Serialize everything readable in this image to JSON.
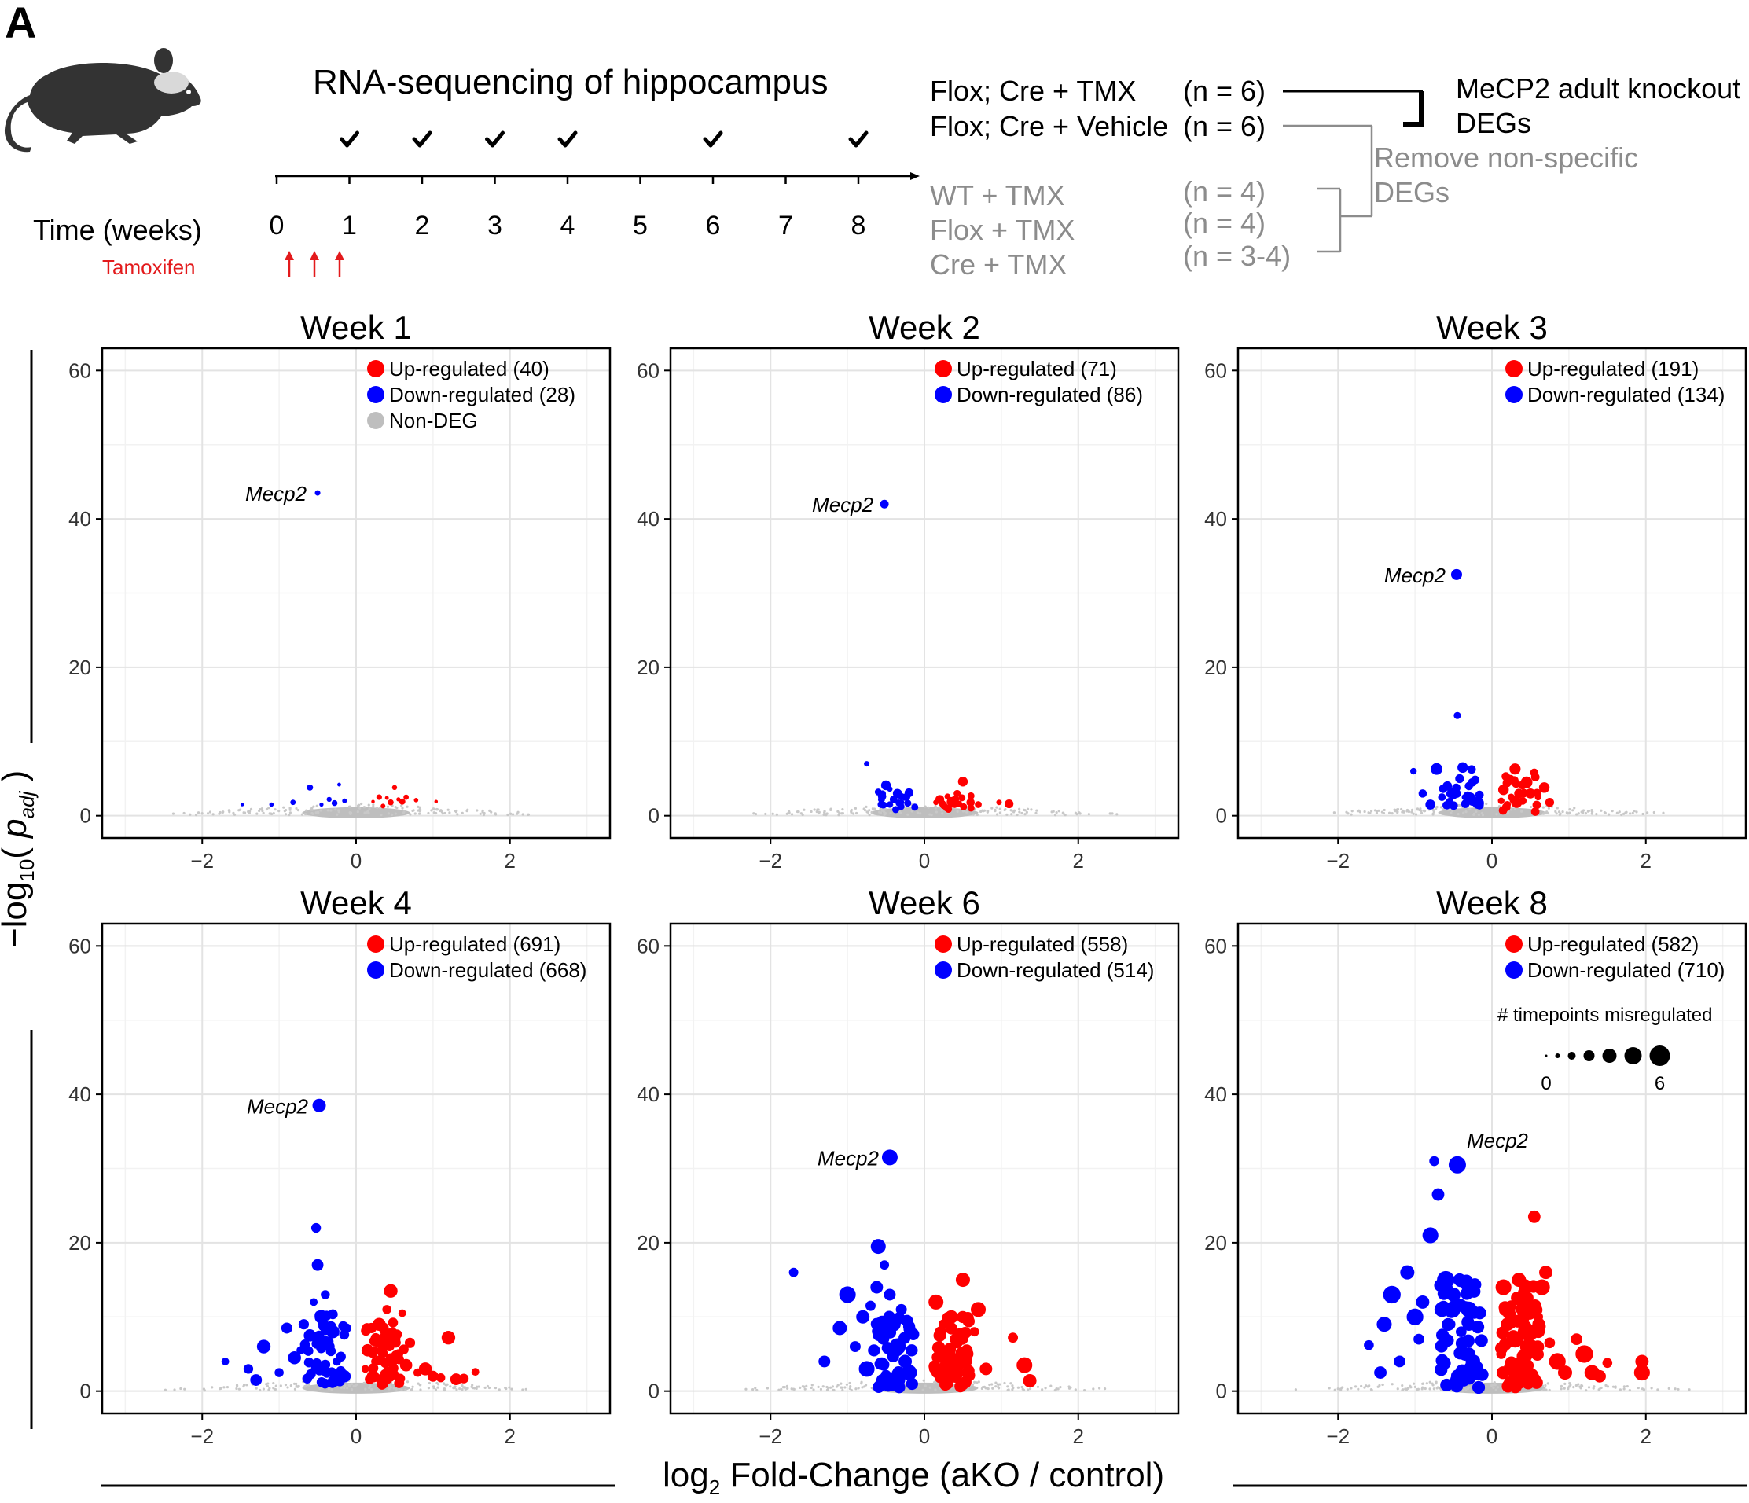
{
  "panel_label": "A",
  "schematic": {
    "title": "RNA-sequencing of hippocampus",
    "time_label": "Time (weeks)",
    "tamoxifen_label": "Tamoxifen",
    "ticks": [
      "0",
      "1",
      "2",
      "3",
      "4",
      "5",
      "6",
      "7",
      "8"
    ],
    "sequenced_weeks": [
      1,
      2,
      3,
      4,
      6,
      8
    ],
    "tamoxifen_doses": 3,
    "groups": [
      {
        "name": "Flox; Cre + TMX",
        "n": "(n = 6)",
        "style": "main"
      },
      {
        "name": "Flox; Cre + Vehicle",
        "n": "(n = 6)",
        "style": "main"
      },
      {
        "name": "WT + TMX",
        "n": "(n = 4)",
        "style": "control"
      },
      {
        "name": "Flox + TMX",
        "n": "(n = 4)",
        "style": "control"
      },
      {
        "name": "Cre + TMX",
        "n": "(n = 3-4)",
        "style": "control"
      }
    ],
    "result_line1": "MeCP2 adult knockout",
    "result_line2": "DEGs",
    "remove_line1": "Remove non-specific",
    "remove_line2": "DEGs",
    "colors": {
      "tamoxifen": "#e31a1c",
      "control_text": "#8c8c8c"
    }
  },
  "axes": {
    "ylabel_prefix": "−log",
    "ylabel_sub": "10",
    "ylabel_open": "(",
    "ylabel_p": "p",
    "ylabel_p_sub": "adj",
    "ylabel_close": ")",
    "xlabel_prefix": "log",
    "xlabel_sub": "2",
    "xlabel_rest": " Fold-Change (aKO / control)"
  },
  "legend_size": {
    "title": "# timepoints misregulated",
    "min_label": "0",
    "max_label": "6"
  },
  "chart_data": [
    {
      "type": "scatter",
      "title": "Week 1",
      "xlim": [
        -3.3,
        3.3
      ],
      "ylim": [
        -3,
        63
      ],
      "xticks": [
        -2,
        0,
        2
      ],
      "yticks": [
        0,
        20,
        40,
        60
      ],
      "legend": [
        {
          "label": "Up-regulated (40)",
          "color": "#ff0000"
        },
        {
          "label": "Down-regulated (28)",
          "color": "#0000ff"
        },
        {
          "label": "Non-DEG",
          "color": "#bebebe"
        }
      ],
      "annotation": {
        "label": "Mecp2",
        "x": -0.5,
        "y": 43.5
      },
      "up": [
        [
          0.22,
          1.9
        ],
        [
          0.3,
          2.5
        ],
        [
          0.35,
          1.3
        ],
        [
          0.4,
          2.4
        ],
        [
          0.45,
          1.8
        ],
        [
          0.5,
          3.8
        ],
        [
          0.55,
          2.2
        ],
        [
          0.6,
          1.9
        ],
        [
          0.65,
          2.5
        ],
        [
          0.78,
          2.1
        ],
        [
          1.04,
          1.9
        ]
      ],
      "down": [
        [
          -1.48,
          1.5
        ],
        [
          -1.1,
          1.5
        ],
        [
          -0.82,
          1.8
        ],
        [
          -0.6,
          3.8
        ],
        [
          -0.45,
          1.5
        ],
        [
          -0.35,
          2.2
        ],
        [
          -0.28,
          1.7
        ],
        [
          -0.22,
          4.2
        ],
        [
          -0.15,
          2.0
        ]
      ],
      "mecp2": [
        -0.5,
        43.5
      ]
    },
    {
      "type": "scatter",
      "title": "Week 2",
      "xlim": [
        -3.3,
        3.3
      ],
      "ylim": [
        -3,
        63
      ],
      "xticks": [
        -2,
        0,
        2
      ],
      "yticks": [
        0,
        20,
        40,
        60
      ],
      "legend": [
        {
          "label": "Up-regulated (71)",
          "color": "#ff0000"
        },
        {
          "label": "Down-regulated (86)",
          "color": "#0000ff"
        }
      ],
      "annotation": {
        "label": "Mecp2",
        "x": -0.52,
        "y": 42.0
      },
      "up": [
        [
          0.15,
          1.8
        ],
        [
          0.2,
          2.2
        ],
        [
          0.25,
          1.4
        ],
        [
          0.3,
          2.6
        ],
        [
          0.35,
          1.9
        ],
        [
          0.4,
          2.2
        ],
        [
          0.45,
          1.6
        ],
        [
          0.5,
          4.6
        ],
        [
          0.6,
          1.8
        ],
        [
          0.7,
          1.5
        ],
        [
          0.97,
          1.8
        ],
        [
          1.1,
          1.6
        ]
      ],
      "down": [
        [
          -0.75,
          7.0
        ],
        [
          -0.6,
          3.2
        ],
        [
          -0.55,
          2.6
        ],
        [
          -0.5,
          4.1
        ],
        [
          -0.45,
          1.5
        ],
        [
          -0.4,
          2.2
        ],
        [
          -0.35,
          3.0
        ],
        [
          -0.3,
          1.8
        ],
        [
          -0.25,
          2.5
        ],
        [
          -0.2,
          3.1
        ],
        [
          -0.45,
          3.6
        ],
        [
          -0.3,
          2.6
        ]
      ],
      "mecp2": [
        -0.52,
        42.0
      ]
    },
    {
      "type": "scatter",
      "title": "Week 3",
      "xlim": [
        -3.3,
        3.3
      ],
      "ylim": [
        -3,
        63
      ],
      "xticks": [
        -2,
        0,
        2
      ],
      "yticks": [
        0,
        20,
        40,
        60
      ],
      "legend": [
        {
          "label": "Up-regulated (191)",
          "color": "#ff0000"
        },
        {
          "label": "Down-regulated (134)",
          "color": "#0000ff"
        }
      ],
      "annotation": {
        "label": "Mecp2",
        "x": -0.46,
        "y": 32.5
      },
      "up": [
        [
          0.12,
          2.0
        ],
        [
          0.15,
          3.5
        ],
        [
          0.2,
          4.5
        ],
        [
          0.25,
          2.5
        ],
        [
          0.3,
          6.3
        ],
        [
          0.35,
          3.0
        ],
        [
          0.4,
          2.0
        ],
        [
          0.45,
          4.5
        ],
        [
          0.5,
          3.0
        ],
        [
          0.55,
          5.8
        ],
        [
          0.6,
          2.5
        ],
        [
          0.68,
          3.8
        ],
        [
          0.75,
          1.8
        ],
        [
          0.2,
          1.5
        ],
        [
          0.32,
          1.8
        ]
      ],
      "down": [
        [
          -1.02,
          6.0
        ],
        [
          -0.9,
          3.0
        ],
        [
          -0.8,
          1.5
        ],
        [
          -0.72,
          6.3
        ],
        [
          -0.65,
          2.5
        ],
        [
          -0.58,
          4.0
        ],
        [
          -0.5,
          3.0
        ],
        [
          -0.45,
          13.5
        ],
        [
          -0.42,
          5.0
        ],
        [
          -0.38,
          6.5
        ],
        [
          -0.35,
          2.5
        ],
        [
          -0.3,
          4.0
        ],
        [
          -0.25,
          2.0
        ],
        [
          -0.18,
          1.7
        ],
        [
          -0.55,
          1.9
        ],
        [
          -0.28,
          2.5
        ]
      ],
      "mecp2": [
        -0.46,
        32.5
      ]
    },
    {
      "type": "scatter",
      "title": "Week 4",
      "xlim": [
        -3.3,
        3.3
      ],
      "ylim": [
        -3,
        63
      ],
      "xticks": [
        -2,
        0,
        2
      ],
      "yticks": [
        0,
        20,
        40,
        60
      ],
      "legend": [
        {
          "label": "Up-regulated (691)",
          "color": "#ff0000"
        },
        {
          "label": "Down-regulated (668)",
          "color": "#0000ff"
        }
      ],
      "annotation": {
        "label": "Mecp2",
        "x": -0.48,
        "y": 38.5
      },
      "up": [
        [
          0.12,
          3.0
        ],
        [
          0.15,
          5.5
        ],
        [
          0.2,
          8.5
        ],
        [
          0.25,
          4.0
        ],
        [
          0.3,
          9.0
        ],
        [
          0.35,
          6.0
        ],
        [
          0.4,
          11.0
        ],
        [
          0.45,
          13.5
        ],
        [
          0.5,
          7.0
        ],
        [
          0.55,
          5.0
        ],
        [
          0.6,
          10.5
        ],
        [
          0.65,
          3.5
        ],
        [
          0.7,
          6.5
        ],
        [
          0.8,
          2.5
        ],
        [
          0.9,
          3.0
        ],
        [
          1.0,
          2.0
        ],
        [
          1.1,
          1.8
        ],
        [
          1.2,
          7.2
        ],
        [
          1.3,
          1.6
        ],
        [
          1.4,
          1.7
        ],
        [
          1.55,
          2.6
        ],
        [
          0.22,
          2.0
        ],
        [
          0.32,
          1.6
        ],
        [
          0.5,
          2.3
        ]
      ],
      "down": [
        [
          -1.7,
          4.0
        ],
        [
          -1.4,
          3.0
        ],
        [
          -1.3,
          1.5
        ],
        [
          -1.2,
          6.0
        ],
        [
          -1.0,
          2.5
        ],
        [
          -0.9,
          8.5
        ],
        [
          -0.8,
          4.5
        ],
        [
          -0.72,
          5.5
        ],
        [
          -0.68,
          9.0
        ],
        [
          -0.6,
          7.5
        ],
        [
          -0.55,
          12.0
        ],
        [
          -0.52,
          22.0
        ],
        [
          -0.5,
          17.0
        ],
        [
          -0.45,
          10.0
        ],
        [
          -0.4,
          13.0
        ],
        [
          -0.35,
          6.0
        ],
        [
          -0.3,
          8.0
        ],
        [
          -0.25,
          4.0
        ],
        [
          -0.2,
          2.5
        ],
        [
          -0.15,
          2.0
        ]
      ],
      "mecp2": [
        -0.48,
        38.5
      ]
    },
    {
      "type": "scatter",
      "title": "Week 6",
      "xlim": [
        -3.3,
        3.3
      ],
      "ylim": [
        -3,
        63
      ],
      "xticks": [
        -2,
        0,
        2
      ],
      "yticks": [
        0,
        20,
        40,
        60
      ],
      "legend": [
        {
          "label": "Up-regulated (558)",
          "color": "#ff0000"
        },
        {
          "label": "Down-regulated (514)",
          "color": "#0000ff"
        }
      ],
      "annotation": {
        "label": "Mecp2",
        "x": -0.45,
        "y": 31.5
      },
      "up": [
        [
          0.12,
          3.0
        ],
        [
          0.15,
          12.0
        ],
        [
          0.2,
          7.5
        ],
        [
          0.25,
          9.0
        ],
        [
          0.3,
          5.0
        ],
        [
          0.35,
          10.0
        ],
        [
          0.4,
          7.0
        ],
        [
          0.45,
          4.0
        ],
        [
          0.5,
          15.0
        ],
        [
          0.55,
          5.5
        ],
        [
          0.65,
          8.0
        ],
        [
          0.7,
          11.0
        ],
        [
          0.8,
          3.0
        ],
        [
          1.15,
          7.2
        ],
        [
          1.3,
          3.5
        ],
        [
          1.37,
          1.4
        ],
        [
          0.22,
          2.0
        ],
        [
          0.4,
          2.5
        ]
      ],
      "down": [
        [
          -1.7,
          16.0
        ],
        [
          -1.3,
          4.0
        ],
        [
          -1.1,
          8.5
        ],
        [
          -1.0,
          13.0
        ],
        [
          -0.9,
          6.0
        ],
        [
          -0.8,
          10.0
        ],
        [
          -0.75,
          3.0
        ],
        [
          -0.7,
          11.5
        ],
        [
          -0.62,
          14.0
        ],
        [
          -0.6,
          19.5
        ],
        [
          -0.52,
          17.0
        ],
        [
          -0.45,
          13.0
        ],
        [
          -0.4,
          9.0
        ],
        [
          -0.35,
          6.0
        ],
        [
          -0.3,
          11.0
        ],
        [
          -0.25,
          4.0
        ],
        [
          -0.2,
          2.5
        ],
        [
          -0.5,
          2.2
        ]
      ],
      "mecp2": [
        -0.45,
        31.5
      ]
    },
    {
      "type": "scatter",
      "title": "Week 8",
      "xlim": [
        -3.3,
        3.3
      ],
      "ylim": [
        -3,
        63
      ],
      "xticks": [
        -2,
        0,
        2
      ],
      "yticks": [
        0,
        20,
        40,
        60
      ],
      "legend": [
        {
          "label": "Up-regulated (582)",
          "color": "#ff0000"
        },
        {
          "label": "Down-regulated (710)",
          "color": "#0000ff"
        }
      ],
      "annotation": {
        "label": "Mecp2",
        "x": -0.45,
        "y": 30.5
      },
      "up": [
        [
          0.12,
          5.0
        ],
        [
          0.15,
          14.0
        ],
        [
          0.2,
          9.0
        ],
        [
          0.25,
          11.5
        ],
        [
          0.3,
          7.0
        ],
        [
          0.35,
          15.0
        ],
        [
          0.4,
          12.0
        ],
        [
          0.45,
          8.0
        ],
        [
          0.5,
          6.0
        ],
        [
          0.55,
          23.5
        ],
        [
          0.6,
          10.0
        ],
        [
          0.65,
          14.0
        ],
        [
          0.7,
          16.0
        ],
        [
          0.75,
          6.5
        ],
        [
          0.85,
          4.0
        ],
        [
          0.95,
          2.5
        ],
        [
          1.1,
          7.0
        ],
        [
          1.2,
          5.0
        ],
        [
          1.3,
          2.5
        ],
        [
          1.4,
          2.0
        ],
        [
          1.5,
          3.8
        ],
        [
          1.95,
          2.5
        ],
        [
          1.95,
          4.0
        ],
        [
          0.3,
          2.5
        ],
        [
          0.5,
          2.0
        ]
      ],
      "down": [
        [
          -1.6,
          6.2
        ],
        [
          -1.45,
          2.5
        ],
        [
          -1.4,
          9.0
        ],
        [
          -1.3,
          13.0
        ],
        [
          -1.2,
          4.0
        ],
        [
          -1.1,
          16.0
        ],
        [
          -1.0,
          10.0
        ],
        [
          -0.95,
          7.0
        ],
        [
          -0.9,
          12.0
        ],
        [
          -0.8,
          21.0
        ],
        [
          -0.75,
          31.0
        ],
        [
          -0.7,
          26.5
        ],
        [
          -0.65,
          11.0
        ],
        [
          -0.6,
          15.0
        ],
        [
          -0.55,
          9.0
        ],
        [
          -0.5,
          13.0
        ],
        [
          -0.45,
          30.5
        ],
        [
          -0.4,
          8.0
        ],
        [
          -0.35,
          5.0
        ],
        [
          -0.3,
          11.0
        ],
        [
          -0.25,
          4.0
        ],
        [
          -0.2,
          2.5
        ]
      ],
      "mecp2": [
        -0.45,
        30.5
      ]
    }
  ]
}
